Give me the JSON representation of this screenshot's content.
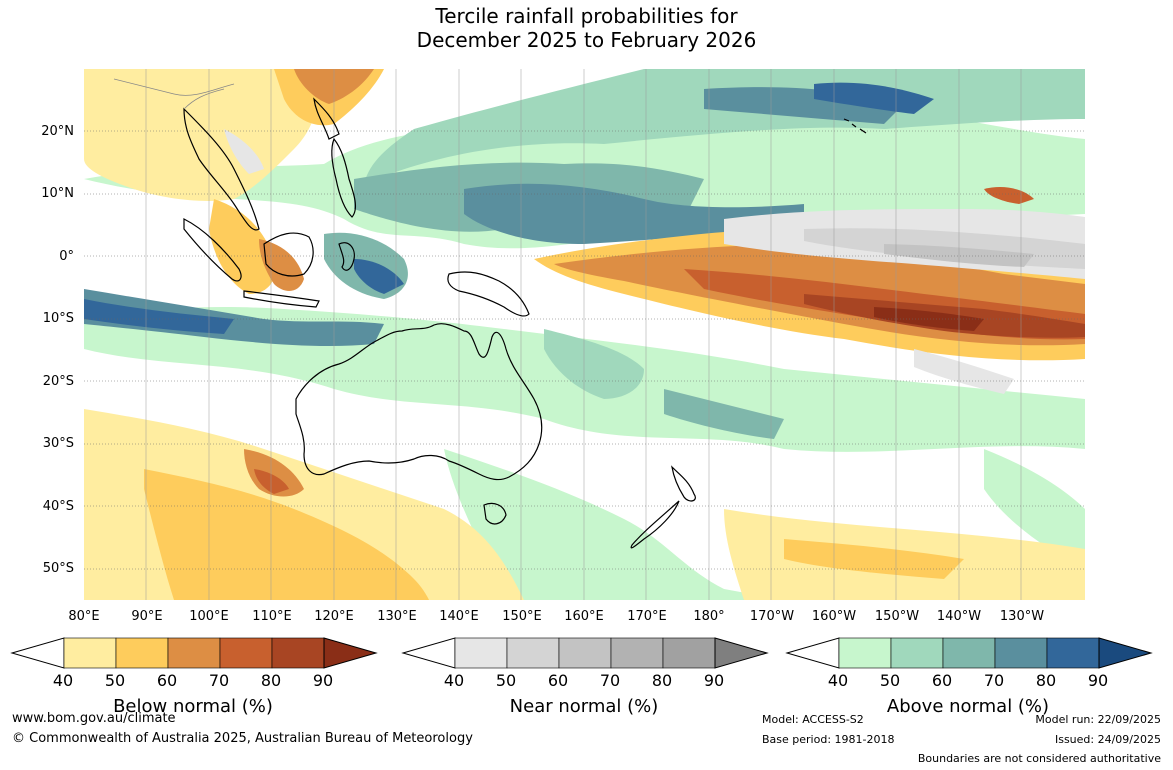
{
  "title": {
    "line1": "Tercile rainfall probabilities for",
    "line2": "December 2025 to February 2026"
  },
  "map": {
    "lat_labels": [
      "20°N",
      "10°N",
      "0°",
      "10°S",
      "20°S",
      "30°S",
      "40°S",
      "50°S"
    ],
    "lon_labels": [
      "80°E",
      "90°E",
      "100°E",
      "110°E",
      "120°E",
      "130°E",
      "140°E",
      "150°E",
      "160°E",
      "170°E",
      "180°",
      "170°W",
      "160°W",
      "150°W",
      "140°W",
      "130°W"
    ]
  },
  "legends": [
    {
      "name": "below",
      "title": "Below normal (%)",
      "ticks": [
        "40",
        "50",
        "60",
        "70",
        "80",
        "90"
      ],
      "colors": [
        "#ffeda0",
        "#fecc5c",
        "#dd8e44",
        "#c8602e",
        "#a84523",
        "#8a2e17"
      ]
    },
    {
      "name": "near",
      "title": "Near normal (%)",
      "ticks": [
        "40",
        "50",
        "60",
        "70",
        "80",
        "90"
      ],
      "colors": [
        "#e6e6e6",
        "#d4d4d4",
        "#c3c3c3",
        "#b2b2b2",
        "#a1a1a1",
        "#7f7f7f"
      ]
    },
    {
      "name": "above",
      "title": "Above normal (%)",
      "ticks": [
        "40",
        "50",
        "60",
        "70",
        "80",
        "90"
      ],
      "colors": [
        "#c7f6cd",
        "#a0d8bc",
        "#7fb7ab",
        "#5a8f9e",
        "#32679a",
        "#1a4a7e"
      ]
    }
  ],
  "footer": {
    "website": "www.bom.gov.au/climate",
    "copyright": "© Commonwealth of Australia 2025, Australian Bureau of Meteorology",
    "model": "Model: ACCESS-S2",
    "base_period": "Base period: 1981-2018",
    "model_run": "Model run: 22/09/2025",
    "issued": "Issued: 24/09/2025",
    "disclaimer": "Boundaries are not considered authoritative"
  }
}
